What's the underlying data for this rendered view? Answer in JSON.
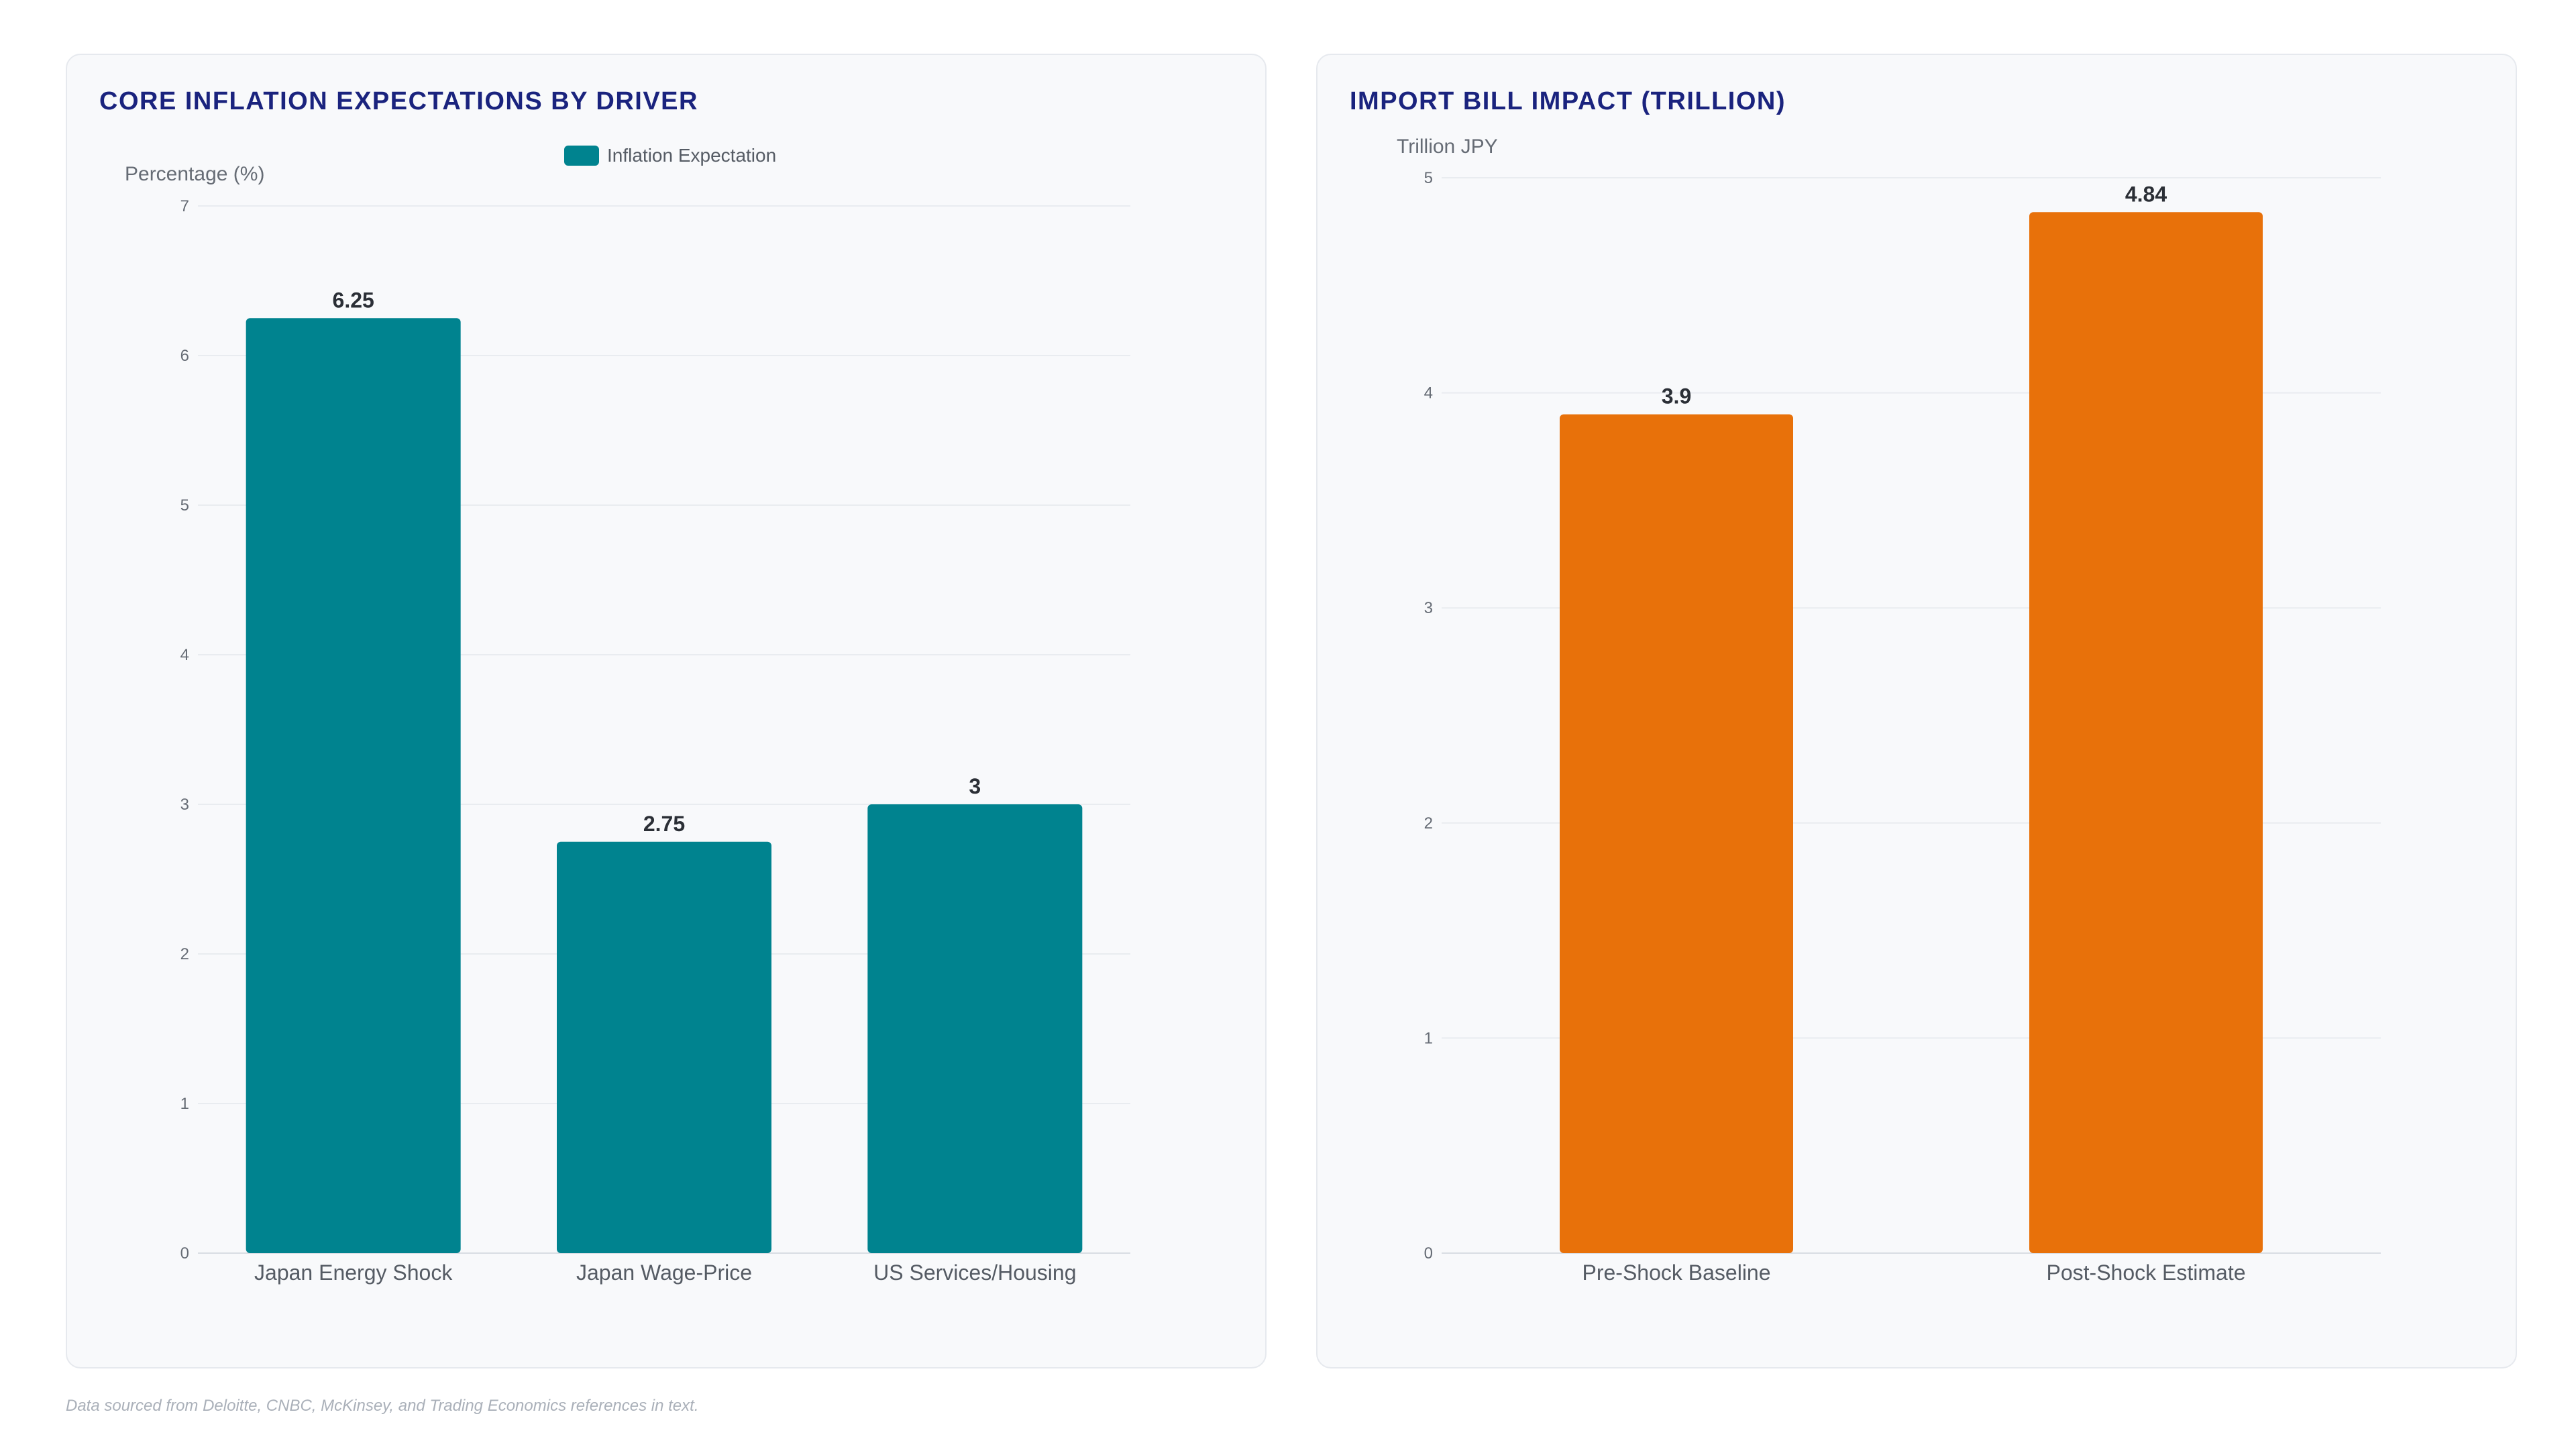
{
  "footnote": "Data sourced from Deloitte, CNBC, McKinsey, and Trading Economics references in text.",
  "chart_data": [
    {
      "type": "bar",
      "title": "CORE INFLATION EXPECTATIONS BY DRIVER",
      "ylabel": "Percentage (%)",
      "xlabel": "",
      "categories": [
        "Japan Energy Shock",
        "Japan Wage-Price",
        "US Services/Housing"
      ],
      "series": [
        {
          "name": "Inflation Expectation",
          "values": [
            6.25,
            2.75,
            3
          ],
          "color": "#00838f"
        }
      ],
      "ylim": [
        0,
        7
      ],
      "yticks": [
        "0",
        "1",
        "2",
        "3",
        "4",
        "5",
        "6",
        "7"
      ],
      "data_labels": [
        "6.25",
        "2.75",
        "3"
      ],
      "grid": true,
      "legend": "top-center"
    },
    {
      "type": "bar",
      "title": "IMPORT BILL IMPACT (TRILLION)",
      "ylabel": "Trillion JPY",
      "xlabel": "",
      "categories": [
        "Pre-Shock Baseline",
        "Post-Shock Estimate"
      ],
      "series": [
        {
          "values": [
            3.9,
            4.84
          ],
          "color": "#e8710a"
        }
      ],
      "ylim": [
        0,
        5
      ],
      "yticks": [
        "0",
        "1",
        "2",
        "3",
        "4",
        "5"
      ],
      "data_labels": [
        "3.9",
        "4.84"
      ],
      "grid": true,
      "legend": "none"
    }
  ]
}
